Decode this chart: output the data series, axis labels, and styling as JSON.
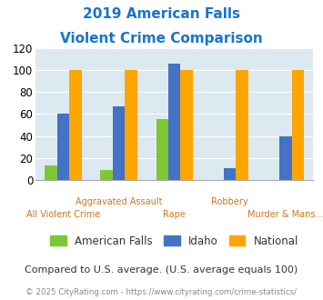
{
  "title_line1": "2019 American Falls",
  "title_line2": "Violent Crime Comparison",
  "title_color": "#1874cd",
  "categories_top": [
    "",
    "Aggravated Assault",
    "",
    "Robbery",
    ""
  ],
  "categories_bot": [
    "All Violent Crime",
    "",
    "Rape",
    "",
    "Murder & Mans..."
  ],
  "series": {
    "American Falls": [
      13,
      9,
      55,
      0,
      0
    ],
    "Idaho": [
      60,
      67,
      106,
      11,
      40
    ],
    "National": [
      100,
      100,
      100,
      100,
      100
    ]
  },
  "colors": {
    "American Falls": "#7dc832",
    "Idaho": "#4472c4",
    "National": "#ffa500"
  },
  "ylim": [
    0,
    120
  ],
  "yticks": [
    0,
    20,
    40,
    60,
    80,
    100,
    120
  ],
  "plot_bg_color": "#dce9f0",
  "fig_bg_color": "#ffffff",
  "xlabel_top_color": "#cc7722",
  "xlabel_bot_color": "#cc7722",
  "footer_text": "Compared to U.S. average. (U.S. average equals 100)",
  "footer_color": "#333333",
  "copyright_text": "© 2025 CityRating.com - https://www.cityrating.com/crime-statistics/",
  "copyright_color": "#888888",
  "series_names": [
    "American Falls",
    "Idaho",
    "National"
  ],
  "bar_width": 0.22
}
